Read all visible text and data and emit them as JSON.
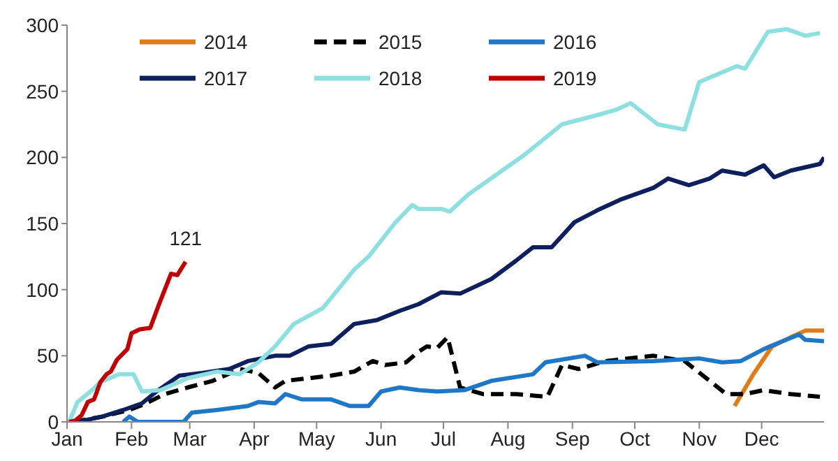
{
  "chart_data": {
    "type": "line",
    "xlim": [
      "--01-01",
      "--12-31"
    ],
    "ylim": [
      0,
      300
    ],
    "yticks": [
      0,
      50,
      100,
      150,
      200,
      250,
      300
    ],
    "xticks": [
      {
        "value": "--01-01",
        "label": "Jan"
      },
      {
        "value": "--02-01",
        "label": "Feb"
      },
      {
        "value": "--03-01",
        "label": "Mar"
      },
      {
        "value": "--04-01",
        "label": "Apr"
      },
      {
        "value": "--05-01",
        "label": "May"
      },
      {
        "value": "--06-01",
        "label": "Jun"
      },
      {
        "value": "--07-01",
        "label": "Jul"
      },
      {
        "value": "--08-01",
        "label": "Aug"
      },
      {
        "value": "--09-01",
        "label": "Sep"
      },
      {
        "value": "--10-01",
        "label": "Oct"
      },
      {
        "value": "--11-01",
        "label": "Nov"
      },
      {
        "value": "--12-01",
        "label": "Dec"
      }
    ],
    "grid": false,
    "legend": "top",
    "marker": "none",
    "annotations": [
      {
        "text": "121",
        "x": "--02-27",
        "y": 121
      }
    ],
    "series": [
      {
        "name": "2014",
        "color": "#e07b1a",
        "x": [
          "--11-18",
          "--11-27",
          "--12-06",
          "--12-15",
          "--12-22",
          "--12-31"
        ],
        "values": [
          12,
          36,
          57,
          64,
          69,
          69
        ]
      },
      {
        "name": "2015",
        "color": "#000000",
        "line_style": "dashed",
        "x": [
          "--01-04",
          "--01-18",
          "--01-31",
          "--02-08",
          "--02-17",
          "--02-28",
          "--03-12",
          "--03-25",
          "--04-03",
          "--04-11",
          "--04-16",
          "--05-08",
          "--05-19",
          "--05-28",
          "--06-03",
          "--06-13",
          "--06-19",
          "--06-23",
          "--06-28",
          "--07-03",
          "--07-09",
          "--07-20",
          "--08-05",
          "--08-20",
          "--08-27",
          "--09-04",
          "--09-17",
          "--10-10",
          "--10-25",
          "--11-06",
          "--11-14",
          "--11-23",
          "--12-02",
          "--12-15",
          "--12-29"
        ],
        "values": [
          0,
          4,
          9,
          14,
          21,
          26,
          31,
          40,
          37,
          26,
          31,
          35,
          38,
          46,
          43,
          45,
          53,
          57,
          56,
          64,
          26,
          21,
          21,
          19,
          43,
          40,
          46,
          50,
          46,
          31,
          21,
          21,
          24,
          21,
          19
        ]
      },
      {
        "name": "2016",
        "color": "#1f77c8",
        "x": [
          "--01-28",
          "--01-31",
          "--02-04",
          "--02-26",
          "--03-02",
          "--03-14",
          "--03-29",
          "--04-03",
          "--04-11",
          "--04-16",
          "--04-24",
          "--05-08",
          "--05-17",
          "--05-26",
          "--06-01",
          "--06-10",
          "--06-19",
          "--06-28",
          "--07-11",
          "--07-24",
          "--08-13",
          "--08-19",
          "--09-07",
          "--09-13",
          "--10-10",
          "--11-01",
          "--11-12",
          "--11-21",
          "--12-02",
          "--12-11",
          "--12-19",
          "--12-22",
          "--12-31"
        ],
        "values": [
          0,
          4,
          0,
          0,
          7,
          9,
          12,
          15,
          14,
          21,
          17,
          17,
          12,
          12,
          23,
          26,
          24,
          23,
          24,
          31,
          36,
          45,
          50,
          45,
          46,
          48,
          45,
          46,
          55,
          61,
          66,
          62,
          61
        ]
      },
      {
        "name": "2017",
        "color": "#0d1f5c",
        "x": [
          "--01-06",
          "--01-18",
          "--01-28",
          "--02-06",
          "--02-13",
          "--02-24",
          "--03-07",
          "--03-20",
          "--03-29",
          "--04-11",
          "--04-18",
          "--04-27",
          "--05-08",
          "--05-19",
          "--05-30",
          "--06-10",
          "--06-19",
          "--06-30",
          "--07-09",
          "--07-24",
          "--08-05",
          "--08-13",
          "--08-22",
          "--09-02",
          "--09-13",
          "--09-24",
          "--10-10",
          "--10-17",
          "--10-27",
          "--11-06",
          "--11-12",
          "--11-23",
          "--12-02",
          "--12-07",
          "--12-15",
          "--12-29",
          "--12-31"
        ],
        "values": [
          0,
          4,
          9,
          14,
          23,
          35,
          37,
          40,
          46,
          50,
          50,
          57,
          59,
          74,
          77,
          84,
          89,
          98,
          97,
          108,
          122,
          132,
          132,
          151,
          160,
          168,
          177,
          184,
          179,
          184,
          190,
          187,
          194,
          185,
          190,
          195,
          200
        ]
      },
      {
        "name": "2018",
        "color": "#8ee0e0",
        "x": [
          "--01-02",
          "--01-06",
          "--01-13",
          "--01-17",
          "--01-26",
          "--02-02",
          "--02-06",
          "--02-15",
          "--02-28",
          "--03-14",
          "--03-25",
          "--04-03",
          "--04-11",
          "--04-20",
          "--05-04",
          "--05-19",
          "--05-26",
          "--06-08",
          "--06-16",
          "--06-19",
          "--06-30",
          "--07-04",
          "--07-13",
          "--08-09",
          "--08-27",
          "--09-13",
          "--09-22",
          "--09-29",
          "--10-12",
          "--10-25",
          "--11-01",
          "--11-19",
          "--11-23",
          "--12-04",
          "--12-13",
          "--12-22",
          "--12-29"
        ],
        "values": [
          0,
          15,
          24,
          30,
          36,
          36,
          23,
          24,
          33,
          38,
          36,
          45,
          57,
          74,
          86,
          115,
          125,
          151,
          164,
          161,
          161,
          159,
          172,
          202,
          225,
          232,
          236,
          241,
          225,
          221,
          257,
          269,
          267,
          295,
          297,
          292,
          294
        ]
      },
      {
        "name": "2019",
        "color": "#c00000",
        "x": [
          "--01-02",
          "--01-05",
          "--01-08",
          "--01-11",
          "--01-14",
          "--01-17",
          "--01-20",
          "--01-22",
          "--01-25",
          "--01-30",
          "--02-01",
          "--02-05",
          "--02-10",
          "--02-14",
          "--02-18",
          "--02-20",
          "--02-23",
          "--02-25",
          "--02-27"
        ],
        "values": [
          0,
          1,
          5,
          15,
          17,
          30,
          36,
          38,
          47,
          55,
          67,
          70,
          71,
          88,
          104,
          112,
          111,
          116,
          121
        ]
      }
    ]
  }
}
